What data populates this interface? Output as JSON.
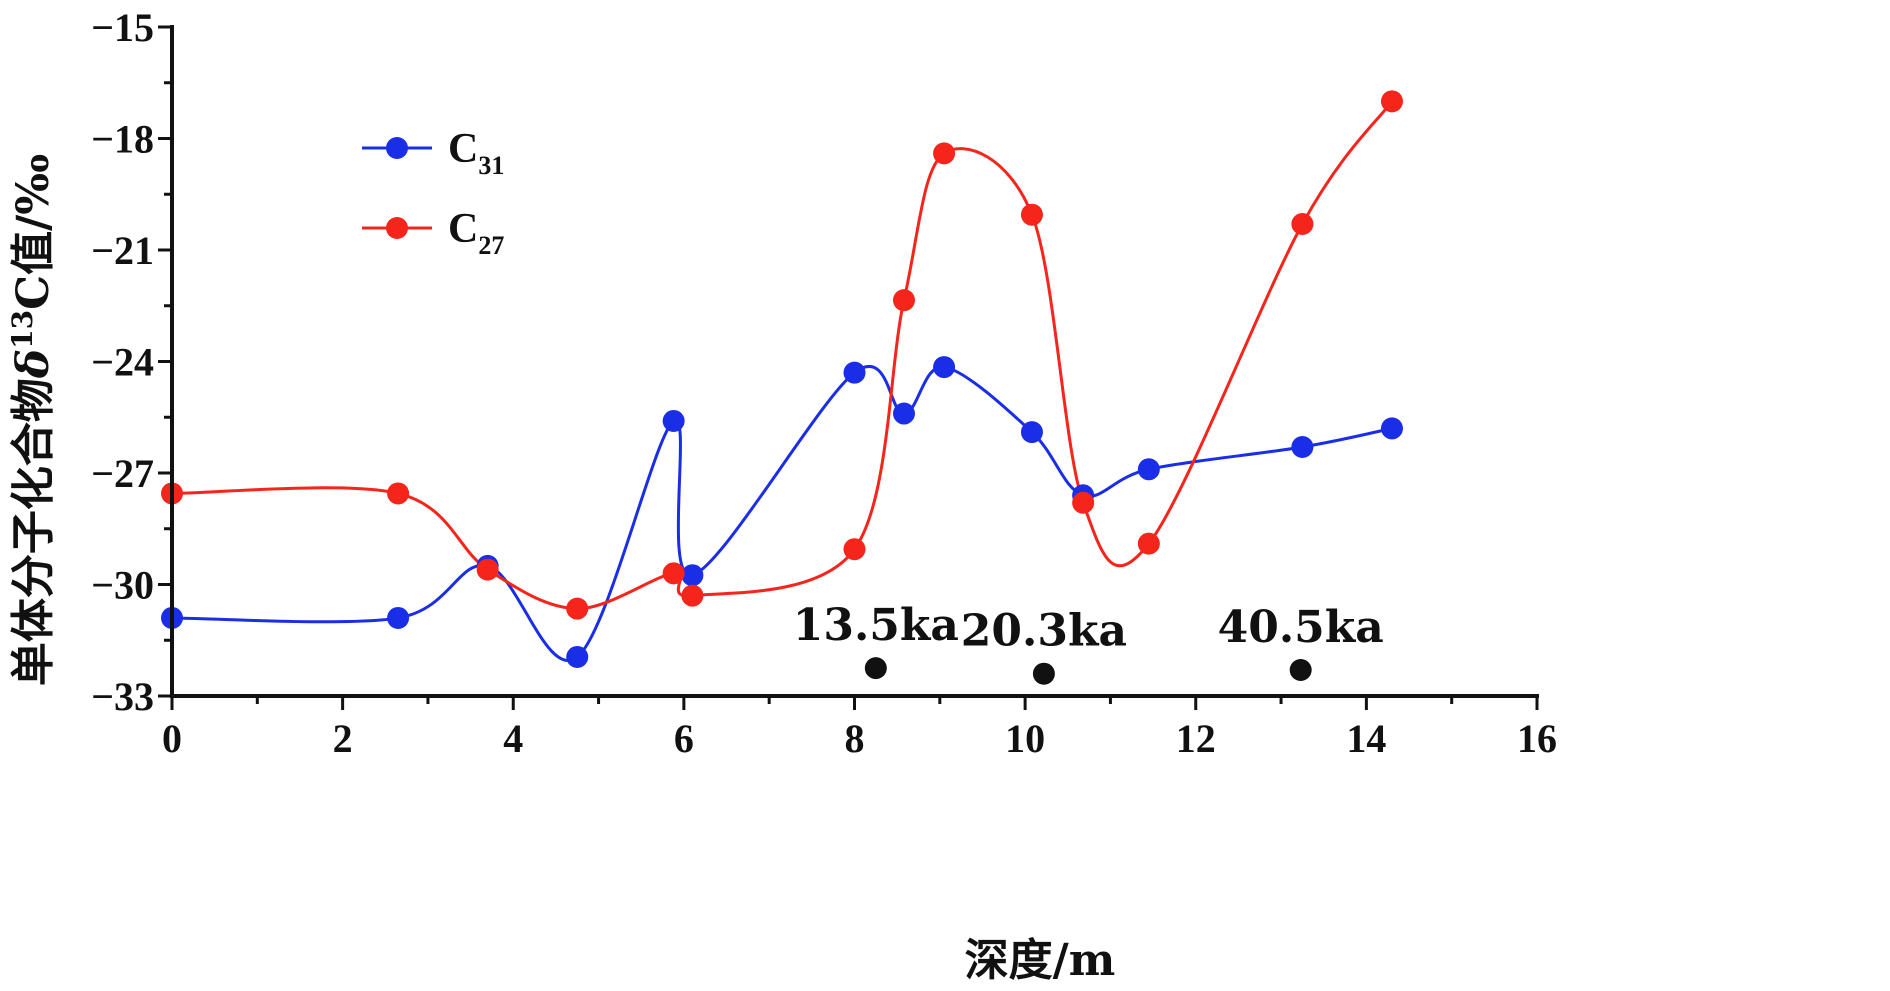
{
  "chart_data": {
    "type": "line",
    "xlabel": "深度/m",
    "ylabel": "单体分子化合物δ¹³C值/‰",
    "ylabel_parts": {
      "prefix": "单体分子化合物",
      "delta": "δ",
      "sup": "13",
      "suffix": "C值/‰"
    },
    "xlim": [
      0,
      16
    ],
    "ylim": [
      -33,
      -15
    ],
    "x_ticks": [
      0,
      2,
      4,
      6,
      8,
      10,
      12,
      14,
      16
    ],
    "y_ticks": [
      -33,
      -30,
      -27,
      -24,
      -21,
      -18,
      -15
    ],
    "x_tick_labels": [
      "0",
      "2",
      "4",
      "6",
      "8",
      "10",
      "12",
      "14",
      "16"
    ],
    "y_tick_labels": [
      "−33",
      "−30",
      "−27",
      "−24",
      "−21",
      "−18",
      "−15"
    ],
    "grid": false,
    "legend_position": "top-left",
    "series": [
      {
        "name": "C31",
        "label_base": "C",
        "label_sub": "31",
        "color": "#1a2ee8",
        "x": [
          0,
          2.65,
          3.7,
          4.75,
          5.88,
          6.1,
          8.0,
          8.58,
          9.05,
          10.08,
          10.68,
          11.45,
          13.25,
          14.3
        ],
        "y": [
          -30.9,
          -30.9,
          -29.5,
          -31.95,
          -25.6,
          -29.75,
          -24.3,
          -25.4,
          -24.15,
          -25.9,
          -27.6,
          -26.9,
          -26.3,
          -25.8
        ]
      },
      {
        "name": "C27",
        "label_base": "C",
        "label_sub": "27",
        "color": "#f5251b",
        "x": [
          0,
          2.65,
          3.7,
          4.75,
          5.88,
          6.1,
          8.0,
          8.58,
          9.05,
          10.08,
          10.68,
          11.45,
          13.25,
          14.3
        ],
        "y": [
          -27.55,
          -27.55,
          -29.6,
          -30.65,
          -29.7,
          -30.3,
          -29.05,
          -22.35,
          -18.4,
          -20.05,
          -27.8,
          -28.9,
          -20.3,
          -17.0
        ]
      }
    ],
    "annotations": [
      {
        "text": "13.5ka",
        "x": 8.25,
        "y": -32.25
      },
      {
        "text": "20.3ka",
        "x": 10.22,
        "y": -32.4
      },
      {
        "text": "40.5ka",
        "x": 13.23,
        "y": -32.3
      }
    ]
  }
}
